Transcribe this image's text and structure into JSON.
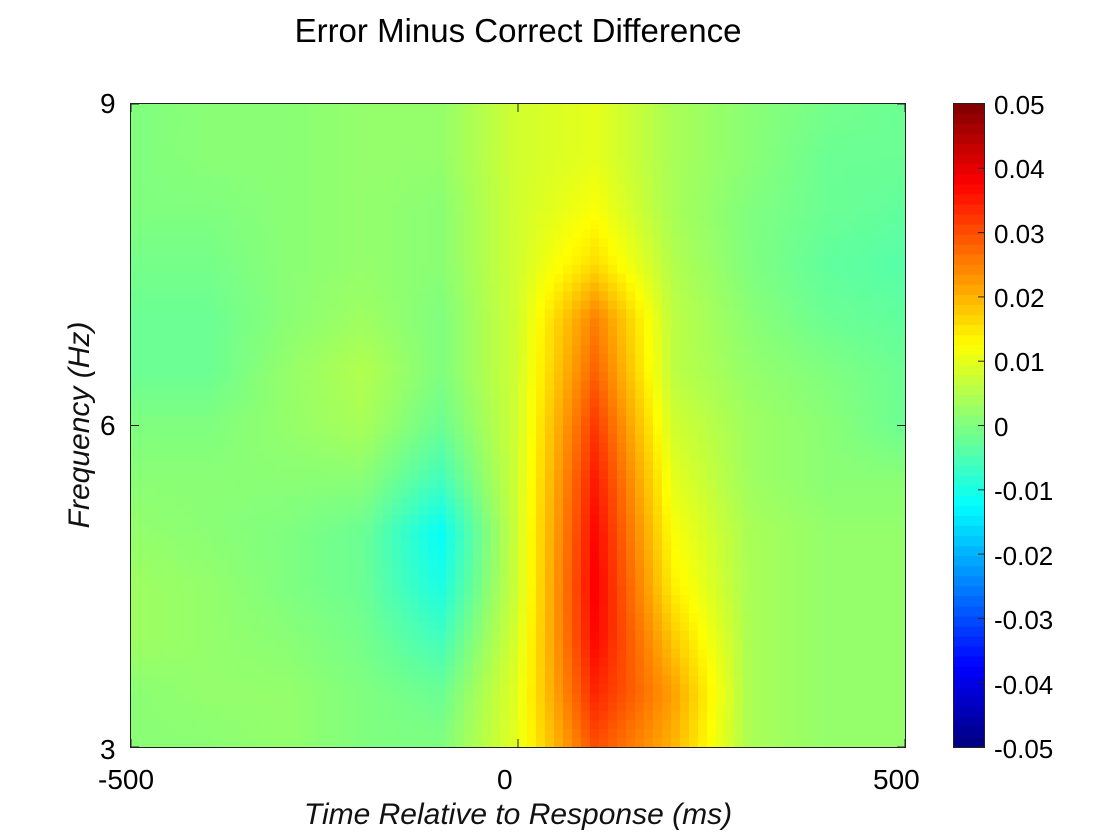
{
  "chart_data": {
    "type": "heatmap",
    "title": "Error Minus Correct Difference",
    "xlabel": "Time Relative to Response (ms)",
    "ylabel": "Frequency (Hz)",
    "xlim": [
      -500,
      500
    ],
    "ylim": [
      3,
      9
    ],
    "xticks": [
      "-500",
      "0",
      "500"
    ],
    "yticks": [
      "3",
      "6",
      "9"
    ],
    "colormap": "jet",
    "clim": [
      -0.05,
      0.05
    ],
    "colorbar_ticks": [
      "0.05",
      "0.04",
      "0.03",
      "0.02",
      "0.01",
      "0",
      "-0.01",
      "-0.02",
      "-0.03",
      "-0.04",
      "-0.05"
    ],
    "x": [
      -500,
      -400,
      -300,
      -200,
      -100,
      0,
      100,
      200,
      300,
      400,
      500
    ],
    "y": [
      3,
      3.5,
      4,
      4.5,
      5,
      5.5,
      6,
      6.5,
      7,
      7.5,
      8,
      8.5,
      9
    ],
    "z": [
      [
        0.001,
        0.001,
        0.002,
        0.0,
        0.0,
        0.01,
        0.03,
        0.02,
        0.004,
        0.002,
        0.002
      ],
      [
        0.001,
        0.002,
        0.002,
        0.0,
        -0.002,
        0.01,
        0.034,
        0.022,
        0.004,
        0.002,
        0.002
      ],
      [
        0.003,
        0.002,
        0.001,
        -0.001,
        -0.006,
        0.009,
        0.037,
        0.018,
        0.004,
        0.002,
        0.002
      ],
      [
        0.003,
        0.002,
        0.0,
        -0.002,
        -0.01,
        0.008,
        0.038,
        0.014,
        0.004,
        0.002,
        0.002
      ],
      [
        0.002,
        0.001,
        0.0,
        -0.002,
        -0.012,
        0.008,
        0.037,
        0.012,
        0.004,
        0.002,
        0.002
      ],
      [
        0.001,
        0.001,
        0.001,
        0.001,
        -0.006,
        0.008,
        0.035,
        0.01,
        0.003,
        0.001,
        0.001
      ],
      [
        0.0,
        0.0,
        0.002,
        0.004,
        -0.002,
        0.008,
        0.032,
        0.008,
        0.003,
        0.001,
        -0.002
      ],
      [
        -0.002,
        -0.002,
        0.002,
        0.005,
        0.0,
        0.008,
        0.028,
        0.006,
        0.002,
        0.0,
        -0.002
      ],
      [
        -0.002,
        -0.002,
        0.001,
        0.003,
        0.0,
        0.008,
        0.025,
        0.006,
        0.001,
        -0.002,
        -0.003
      ],
      [
        -0.001,
        -0.001,
        0.001,
        0.002,
        0.001,
        0.008,
        0.016,
        0.005,
        0.0,
        -0.003,
        -0.004
      ],
      [
        0.0,
        0.0,
        0.001,
        0.002,
        0.001,
        0.008,
        0.012,
        0.004,
        0.0,
        -0.002,
        -0.003
      ],
      [
        0.0,
        0.001,
        0.001,
        0.002,
        0.002,
        0.008,
        0.01,
        0.004,
        0.001,
        -0.002,
        -0.002
      ],
      [
        0.0,
        0.001,
        0.001,
        0.002,
        0.002,
        0.008,
        0.01,
        0.004,
        0.001,
        -0.001,
        -0.002
      ]
    ]
  }
}
